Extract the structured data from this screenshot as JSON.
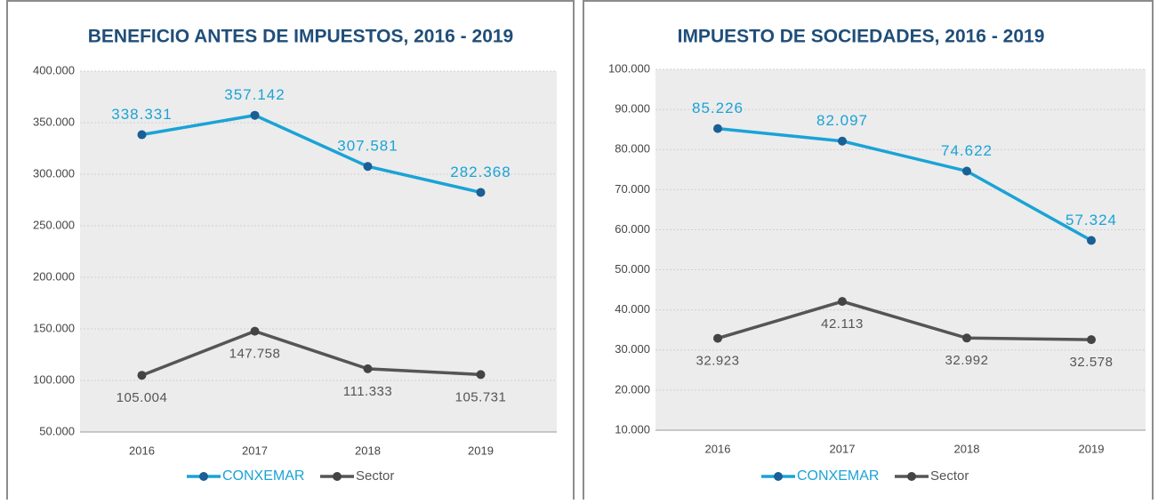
{
  "chart_data": [
    {
      "type": "line",
      "title": "BENEFICIO ANTES DE IMPUESTOS, 2016 - 2019",
      "categories": [
        "2016",
        "2017",
        "2018",
        "2019"
      ],
      "series": [
        {
          "name": "CONXEMAR",
          "color": "#1aa3d6",
          "values": [
            338331,
            357142,
            307581,
            282368
          ],
          "value_labels": [
            "338.331",
            "357.142",
            "307.581",
            "282.368"
          ]
        },
        {
          "name": "Sector",
          "color": "#555555",
          "values": [
            105004,
            147758,
            111333,
            105731
          ],
          "value_labels": [
            "105.004",
            "147.758",
            "111.333",
            "105.731"
          ]
        }
      ],
      "ylim": [
        50000,
        400000
      ],
      "yticks": [
        {
          "value": 50000,
          "label": "50.000"
        },
        {
          "value": 100000,
          "label": "100.000"
        },
        {
          "value": 150000,
          "label": "150.000"
        },
        {
          "value": 200000,
          "label": "200.000"
        },
        {
          "value": 250000,
          "label": "250.000"
        },
        {
          "value": 300000,
          "label": "300.000"
        },
        {
          "value": 350000,
          "label": "350.000"
        },
        {
          "value": 400000,
          "label": "400.000"
        }
      ],
      "grid": true,
      "legend": "bottom"
    },
    {
      "type": "line",
      "title": "IMPUESTO DE SOCIEDADES, 2016 - 2019",
      "categories": [
        "2016",
        "2017",
        "2018",
        "2019"
      ],
      "series": [
        {
          "name": "CONXEMAR",
          "color": "#1aa3d6",
          "values": [
            85226,
            82097,
            74622,
            57324
          ],
          "value_labels": [
            "85.226",
            "82.097",
            "74.622",
            "57.324"
          ]
        },
        {
          "name": "Sector",
          "color": "#555555",
          "values": [
            32923,
            42113,
            32992,
            32578
          ],
          "value_labels": [
            "32.923",
            "42.113",
            "32.992",
            "32.578"
          ]
        }
      ],
      "ylim": [
        10000,
        100000
      ],
      "yticks": [
        {
          "value": 10000,
          "label": "10.000"
        },
        {
          "value": 20000,
          "label": "20.000"
        },
        {
          "value": 30000,
          "label": "30.000"
        },
        {
          "value": 40000,
          "label": "40.000"
        },
        {
          "value": 50000,
          "label": "50.000"
        },
        {
          "value": 60000,
          "label": "60.000"
        },
        {
          "value": 70000,
          "label": "70.000"
        },
        {
          "value": 80000,
          "label": "80.000"
        },
        {
          "value": 90000,
          "label": "90.000"
        },
        {
          "value": 100000,
          "label": "100.000"
        }
      ],
      "grid": true,
      "legend": "bottom"
    }
  ]
}
